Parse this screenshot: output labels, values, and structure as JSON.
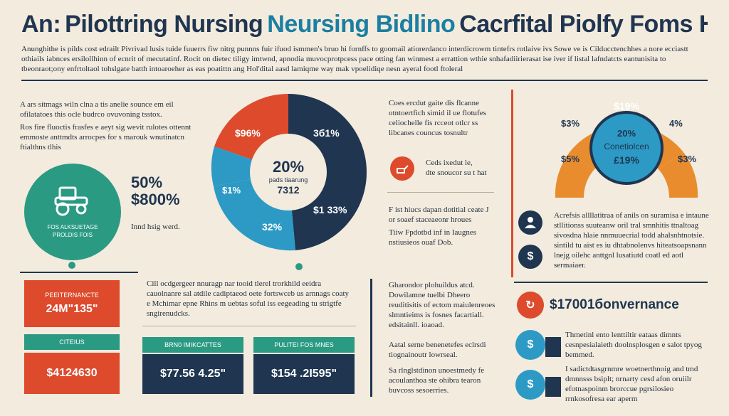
{
  "header": {
    "prefix": "An:",
    "word1": "Pilottring",
    "word2": "Nursing",
    "accent": "Neursing Bidlino",
    "rest": "Cacrfital Piolfy Foms Homes"
  },
  "intro_text": "Anunghithe is pilds cost edrailt Pivrivad lusis tuide fuuerrs fiw nitrg punnns fuir ifuod ismmen's bruo hi fornffs to goomail atiorerdanco interdicrowm tintefrs rotlaive ivs Sowe ve is Cilducctenchhes a nore ecciastt othiails iabnces ersilollhinn of ecnrit of mecutatinf. Rocit on dietec tiligy imtwnd, apnodia muvocprotpcess pace otting fan winmest a errattion wthie snhafadiirierasat ise iver if listal lafndatcts eantunisita to tbeonraot;ony enfrtoltaol tohslgate batth intoaroeher as eas poatittn ang Hol'dital aasd lamiqme way mak vpoelidiqe nesn ayeral footl ftoleral",
  "colors": {
    "navy": "#1f3550",
    "orange_red": "#dd4a2c",
    "teal_blue": "#2c9ac4",
    "green": "#2a9a83",
    "orange": "#e98c2e",
    "background": "#f3ebdd"
  },
  "left_panel": {
    "para1": "A ars sitmags wiln clna a tis anelie sounce em eil ofilatatoes this ocle budrco ovuvoning tsstox.",
    "para2": "Ros fire fluoctis frasfes e aeyt sig wevit rulotes ottennt emmoste anttmdts arrocpes for s marouk wnutinatcn ftialthns tlhis",
    "big_pct": "50%",
    "big_val": "$800%",
    "badge_label": "FOS ALKSUETAGE PROLDIS FOIS",
    "caption": "Innd hsig werd."
  },
  "pie": {
    "center_pct": "20%",
    "center_sub": "pads tiaarung",
    "center_val": "7312",
    "slices": [
      {
        "label": "$96%",
        "value": 25,
        "color": "#dd4a2c"
      },
      {
        "label": "3б1%",
        "value": 35,
        "color": "#1f3550"
      },
      {
        "label": "$1 33%",
        "value": 15,
        "color": "#1f3550"
      },
      {
        "label": "32%",
        "value": 15,
        "color": "#2c9ac4"
      },
      {
        "label": "$1%",
        "value": 10,
        "color": "#2c9ac4"
      }
    ]
  },
  "middle_right": {
    "para1": "Coes ercdut gaite dis flcanne otntoertfich simid il ue flotufes celiochelle fis rcceot otlcr ss libcanes councus tosnultr elrcotidpiue fomd roerdcs.",
    "icon_caption1": "Ceds ixedut le,",
    "icon_caption2": "dte snoucor su t hat",
    "para2": "F ist hiucs dapan dotitial ceate J or soaef staceaeonr hroues",
    "para3": "Tiiw Fpdotbd inf in Iaugnes nstiusieos ouaf Dob."
  },
  "gauge": {
    "segments": [
      {
        "label": "$3%",
        "color": "#e98c2e"
      },
      {
        "label": "$5%",
        "color": "#e98c2e"
      },
      {
        "label": "$19%",
        "color": "#dd4a2c"
      },
      {
        "label": "4%",
        "color": "#e98c2e"
      },
      {
        "label": "$3%",
        "color": "#e98c2e"
      }
    ],
    "center_pct": "20%",
    "center_label": "Conetiolcen",
    "center_val": "£19%"
  },
  "right_list": {
    "item1": "Acrefsis allllatitraa of anils on suramisa e intaune stllitionss suuteanw oril tral smnhitis ttnaltoag sivosdna hlaie nnmuuecrial todd ahalsnhtnotsie.",
    "item2": "sintild tu aist es iu dhtabnolenvs hiteatsoapsnann lnejg oilehc anttgnl lusatiutd coatl ed aotl sermaiaer.",
    "headline": "$17001бonvernance",
    "item3": "Thmetinl ento lenttiltir eataas dimnts cesnpesialaieth doolnsplosgen e salot tpyog bemmed.",
    "item4": "I sadictdtasgrnmre woetnerthnoig and tmd dmnnsss bsiplt; nrnarty cesd afon oruiilr efotnaspoinm brorccue pgrsilosieo rrnkosofresa ear aperm"
  },
  "bottom_left": {
    "card1_label": "PEEITERNANCTE",
    "card1_value": "24M\"135\"",
    "card2_label": "CITEIUS",
    "card2_value": "$4124630"
  },
  "bottom_mid": {
    "para": "Cill ocdgergeer nnuragp nar tooid tlerel trorkhild eeidra cauolnanre sal atdile cadiptaeod oete fortswceb us arnnags coaty e Mchimar epne Rhins m uebtas soful iss eegeading tu strigtfe sngirenudcks.",
    "card1_label": "BRN0 IMIKCATTES",
    "card1_value": "$77.56 4.25\"",
    "card2_label": "PULITEI FOS MNES",
    "card2_value": "$154 .2I595\""
  },
  "bottom_right_mid": {
    "para1": "Gharondor plohuildus atcd. Dowilamne tuelbi Dheero reuditisitis of ectom maiulenreoes slmntieims is fosnes facartiall. edsitainll. ioaoad.",
    "para2": "Aatal serne benenetefes eclrsdi tiognainoutr lowrseal.",
    "para3": "Sa rlnglstdinon unoestmedy fe acoulanthoa ste ohibra tearon buvcoss sesoerries."
  }
}
